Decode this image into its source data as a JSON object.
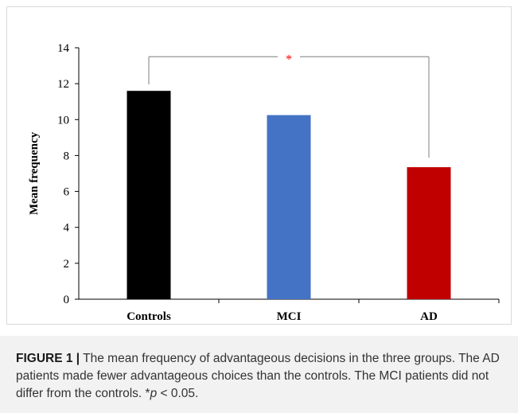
{
  "chart_data": {
    "type": "bar",
    "categories": [
      "Controls",
      "MCI",
      "AD"
    ],
    "values": [
      11.6,
      10.25,
      7.35
    ],
    "colors": [
      "#000000",
      "#4472c4",
      "#c00000"
    ],
    "ylabel": "Mean frequency",
    "xlabel": "",
    "ylim": [
      0,
      14
    ],
    "yticks": [
      0,
      2,
      4,
      6,
      8,
      10,
      12,
      14
    ],
    "grid": false,
    "significance": {
      "between": [
        "Controls",
        "AD"
      ],
      "label": "*",
      "color": "#ff0000"
    }
  },
  "caption": {
    "label": "FIGURE 1",
    "separator": "|",
    "text_before_p": "The mean frequency of advantageous decisions in the three groups. The AD patients made fewer advantageous choices than the controls. The MCI patients did not differ from the controls. *",
    "p_symbol": "p",
    "text_after_p": " < 0.05."
  }
}
